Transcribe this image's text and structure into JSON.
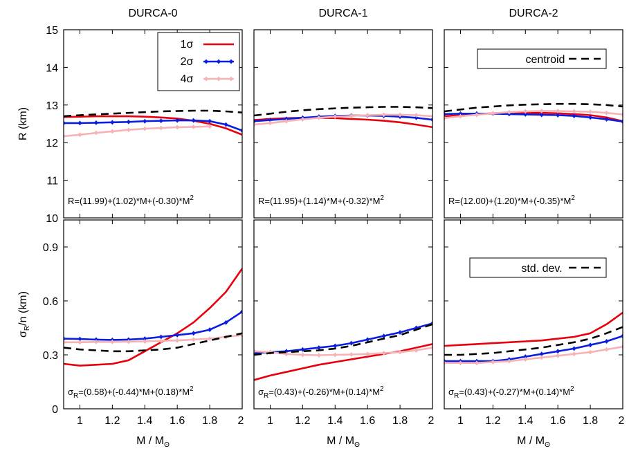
{
  "colors": {
    "sigma1": "#e8000b",
    "sigma2": "#0a1ee0",
    "sigma4": "#f6b2b5",
    "centroid": "#000000"
  },
  "chart_data": [
    {
      "type": "line",
      "model": "DURCA-0",
      "row": "R",
      "title": "DURCA-0",
      "ylabel": "R  (km)",
      "xlabel": "",
      "xlim": [
        0.9,
        2.0
      ],
      "ylim": [
        10,
        15
      ],
      "x_ticks": [],
      "y_ticks": [
        "10",
        "11",
        "12",
        "13",
        "14",
        "15"
      ],
      "fit_text": "R=(11.99)+(1.02)*M+(-0.30)*M",
      "fit_sup": "2",
      "fit_sub": "",
      "legend": {
        "entries": [
          "1σ",
          "2σ",
          "4σ"
        ]
      },
      "series": [
        {
          "name": "1σ",
          "color": "#e8000b",
          "x": [
            0.9,
            1.0,
            1.1,
            1.2,
            1.3,
            1.4,
            1.5,
            1.6,
            1.7,
            1.8,
            1.9,
            2.0
          ],
          "y": [
            12.68,
            12.69,
            12.7,
            12.7,
            12.7,
            12.69,
            12.67,
            12.64,
            12.58,
            12.5,
            12.38,
            12.21
          ]
        },
        {
          "name": "2σ",
          "color": "#0a1ee0",
          "markers": true,
          "x": [
            0.9,
            1.0,
            1.1,
            1.2,
            1.3,
            1.4,
            1.5,
            1.6,
            1.7,
            1.8,
            1.9,
            2.0
          ],
          "y": [
            12.52,
            12.52,
            12.53,
            12.54,
            12.55,
            12.57,
            12.58,
            12.59,
            12.59,
            12.57,
            12.48,
            12.32
          ]
        },
        {
          "name": "4σ",
          "color": "#f6b2b5",
          "markers": true,
          "x": [
            0.9,
            1.0,
            1.1,
            1.2,
            1.3,
            1.4,
            1.5,
            1.6,
            1.7,
            1.8
          ],
          "y": [
            12.17,
            12.21,
            12.26,
            12.3,
            12.34,
            12.37,
            12.39,
            12.41,
            12.42,
            12.43
          ]
        },
        {
          "name": "centroid",
          "color": "#000000",
          "dashed": true,
          "x": [
            0.9,
            1.0,
            1.1,
            1.2,
            1.3,
            1.4,
            1.5,
            1.6,
            1.7,
            1.8,
            1.9,
            2.0
          ],
          "y": [
            12.7,
            12.73,
            12.75,
            12.77,
            12.79,
            12.81,
            12.83,
            12.84,
            12.85,
            12.85,
            12.83,
            12.8
          ]
        }
      ]
    },
    {
      "type": "line",
      "model": "DURCA-1",
      "row": "R",
      "title": "DURCA-1",
      "ylabel": "",
      "xlabel": "",
      "xlim": [
        0.9,
        2.0
      ],
      "ylim": [
        10,
        15
      ],
      "x_ticks": [],
      "y_ticks": [],
      "fit_text": "R=(11.95)+(1.14)*M+(-0.32)*M",
      "fit_sup": "2",
      "fit_sub": "",
      "series": [
        {
          "name": "1σ",
          "color": "#e8000b",
          "x": [
            0.9,
            1.0,
            1.1,
            1.2,
            1.3,
            1.4,
            1.5,
            1.6,
            1.7,
            1.8,
            1.9,
            2.0
          ],
          "y": [
            12.6,
            12.63,
            12.65,
            12.66,
            12.66,
            12.65,
            12.63,
            12.61,
            12.58,
            12.54,
            12.48,
            12.41
          ]
        },
        {
          "name": "2σ",
          "color": "#0a1ee0",
          "markers": true,
          "x": [
            0.9,
            1.0,
            1.1,
            1.2,
            1.3,
            1.4,
            1.5,
            1.6,
            1.7,
            1.8,
            1.9,
            2.0
          ],
          "y": [
            12.57,
            12.6,
            12.63,
            12.66,
            12.69,
            12.71,
            12.72,
            12.72,
            12.71,
            12.69,
            12.66,
            12.61
          ]
        },
        {
          "name": "4σ",
          "color": "#f6b2b5",
          "markers": true,
          "x": [
            0.9,
            1.0,
            1.1,
            1.2,
            1.3,
            1.4,
            1.5,
            1.6,
            1.7,
            1.8,
            1.9,
            2.0
          ],
          "y": [
            12.48,
            12.52,
            12.57,
            12.62,
            12.66,
            12.69,
            12.71,
            12.73,
            12.74,
            12.74,
            12.73,
            12.7
          ]
        },
        {
          "name": "centroid",
          "color": "#000000",
          "dashed": true,
          "x": [
            0.9,
            1.0,
            1.1,
            1.2,
            1.3,
            1.4,
            1.5,
            1.6,
            1.7,
            1.8,
            1.9,
            2.0
          ],
          "y": [
            12.72,
            12.77,
            12.82,
            12.86,
            12.89,
            12.91,
            12.93,
            12.94,
            12.95,
            12.95,
            12.94,
            12.92
          ]
        }
      ]
    },
    {
      "type": "line",
      "model": "DURCA-2",
      "row": "R",
      "title": "DURCA-2",
      "ylabel": "",
      "xlabel": "",
      "xlim": [
        0.9,
        2.0
      ],
      "ylim": [
        10,
        15
      ],
      "x_ticks": [],
      "y_ticks": [],
      "fit_text": "R=(12.00)+(1.20)*M+(-0.35)*M",
      "fit_sup": "2",
      "fit_sub": "",
      "legend": {
        "entries": [
          "centroid"
        ]
      },
      "series": [
        {
          "name": "1σ",
          "color": "#e8000b",
          "x": [
            0.9,
            1.0,
            1.1,
            1.2,
            1.3,
            1.4,
            1.5,
            1.6,
            1.7,
            1.8,
            1.9,
            2.0
          ],
          "y": [
            12.7,
            12.73,
            12.76,
            12.78,
            12.79,
            12.79,
            12.79,
            12.78,
            12.76,
            12.73,
            12.67,
            12.57
          ]
        },
        {
          "name": "2σ",
          "color": "#0a1ee0",
          "markers": true,
          "x": [
            0.9,
            1.0,
            1.1,
            1.2,
            1.3,
            1.4,
            1.5,
            1.6,
            1.7,
            1.8,
            1.9,
            2.0
          ],
          "y": [
            12.76,
            12.77,
            12.77,
            12.77,
            12.76,
            12.75,
            12.74,
            12.73,
            12.71,
            12.67,
            12.62,
            12.56
          ]
        },
        {
          "name": "4σ",
          "color": "#f6b2b5",
          "markers": true,
          "x": [
            0.9,
            1.0,
            1.1,
            1.2,
            1.3,
            1.4,
            1.5,
            1.6,
            1.7,
            1.8,
            1.9,
            2.0
          ],
          "y": [
            12.65,
            12.7,
            12.74,
            12.78,
            12.81,
            12.83,
            12.84,
            12.84,
            12.83,
            12.82,
            12.79,
            12.75
          ]
        },
        {
          "name": "centroid",
          "color": "#000000",
          "dashed": true,
          "x": [
            0.9,
            1.0,
            1.1,
            1.2,
            1.3,
            1.4,
            1.5,
            1.6,
            1.7,
            1.8,
            1.9,
            2.0
          ],
          "y": [
            12.83,
            12.88,
            12.93,
            12.96,
            12.99,
            13.01,
            13.02,
            13.03,
            13.03,
            13.02,
            13.0,
            12.96
          ]
        }
      ]
    },
    {
      "type": "line",
      "model": "DURCA-0",
      "row": "sigma",
      "title": "",
      "ylabel": "σ",
      "ylabel_sub": "R",
      "ylabel_rest": "/n  (km)",
      "xlabel": "M / M",
      "xlabel_sub": "ʘ",
      "xlim": [
        0.9,
        2.0
      ],
      "ylim": [
        0,
        1.05
      ],
      "x_ticks": [
        "1",
        "1.2",
        "1.4",
        "1.6",
        "1.8",
        "2"
      ],
      "y_ticks": [
        "0",
        "0.3",
        "0.6",
        "0.9"
      ],
      "fit_text": "σ",
      "fit_sub": "R",
      "fit_rest": "=(0.58)+(-0.44)*M+(0.18)*M",
      "fit_sup": "2",
      "series": [
        {
          "name": "1σ",
          "color": "#e8000b",
          "x": [
            0.9,
            1.0,
            1.1,
            1.2,
            1.3,
            1.4,
            1.5,
            1.6,
            1.7,
            1.8,
            1.9,
            2.0
          ],
          "y": [
            0.25,
            0.24,
            0.245,
            0.25,
            0.27,
            0.32,
            0.37,
            0.42,
            0.48,
            0.56,
            0.65,
            0.78
          ]
        },
        {
          "name": "2σ",
          "color": "#0a1ee0",
          "markers": true,
          "x": [
            0.9,
            1.0,
            1.1,
            1.2,
            1.3,
            1.4,
            1.5,
            1.6,
            1.7,
            1.8,
            1.9,
            2.0
          ],
          "y": [
            0.39,
            0.388,
            0.385,
            0.383,
            0.385,
            0.39,
            0.4,
            0.41,
            0.42,
            0.44,
            0.48,
            0.54
          ]
        },
        {
          "name": "4σ",
          "color": "#f6b2b5",
          "markers": true,
          "x": [
            0.9,
            1.0,
            1.1,
            1.2,
            1.3,
            1.4,
            1.5,
            1.6,
            1.7,
            1.8,
            1.9,
            2.0
          ],
          "y": [
            0.37,
            0.37,
            0.372,
            0.372,
            0.373,
            0.375,
            0.378,
            0.38,
            0.385,
            0.39,
            0.4,
            0.41
          ]
        },
        {
          "name": "centroid",
          "color": "#000000",
          "dashed": true,
          "x": [
            0.9,
            1.0,
            1.1,
            1.2,
            1.3,
            1.4,
            1.5,
            1.6,
            1.7,
            1.8,
            1.9,
            2.0
          ],
          "y": [
            0.34,
            0.33,
            0.325,
            0.32,
            0.32,
            0.325,
            0.33,
            0.34,
            0.36,
            0.38,
            0.4,
            0.42
          ]
        }
      ]
    },
    {
      "type": "line",
      "model": "DURCA-1",
      "row": "sigma",
      "title": "",
      "ylabel": "",
      "xlabel": "M / M",
      "xlabel_sub": "ʘ",
      "xlim": [
        0.9,
        2.0
      ],
      "ylim": [
        0,
        1.05
      ],
      "x_ticks": [
        "1",
        "1.2",
        "1.4",
        "1.6",
        "1.8",
        "2"
      ],
      "y_ticks": [],
      "fit_text": "σ",
      "fit_sub": "R",
      "fit_rest": "=(0.43)+(-0.26)*M+(0.14)*M",
      "fit_sup": "2",
      "series": [
        {
          "name": "1σ",
          "color": "#e8000b",
          "x": [
            0.9,
            1.0,
            1.1,
            1.2,
            1.3,
            1.4,
            1.5,
            1.6,
            1.7,
            1.8,
            1.9,
            2.0
          ],
          "y": [
            0.16,
            0.185,
            0.205,
            0.225,
            0.245,
            0.26,
            0.275,
            0.29,
            0.305,
            0.32,
            0.34,
            0.36
          ]
        },
        {
          "name": "2σ",
          "color": "#0a1ee0",
          "markers": true,
          "x": [
            0.9,
            1.0,
            1.1,
            1.2,
            1.3,
            1.4,
            1.5,
            1.6,
            1.7,
            1.8,
            1.9,
            2.0
          ],
          "y": [
            0.31,
            0.315,
            0.32,
            0.33,
            0.34,
            0.35,
            0.365,
            0.385,
            0.405,
            0.425,
            0.45,
            0.475
          ]
        },
        {
          "name": "4σ",
          "color": "#f6b2b5",
          "markers": true,
          "x": [
            0.9,
            1.0,
            1.1,
            1.2,
            1.3,
            1.4,
            1.5,
            1.6,
            1.7,
            1.8,
            1.9,
            2.0
          ],
          "y": [
            0.32,
            0.315,
            0.305,
            0.3,
            0.298,
            0.3,
            0.302,
            0.305,
            0.31,
            0.315,
            0.325,
            0.34
          ]
        },
        {
          "name": "centroid",
          "color": "#000000",
          "dashed": true,
          "x": [
            0.9,
            1.0,
            1.1,
            1.2,
            1.3,
            1.4,
            1.5,
            1.6,
            1.7,
            1.8,
            1.9,
            2.0
          ],
          "y": [
            0.3,
            0.31,
            0.315,
            0.32,
            0.325,
            0.335,
            0.35,
            0.37,
            0.39,
            0.41,
            0.44,
            0.47
          ]
        }
      ]
    },
    {
      "type": "line",
      "model": "DURCA-2",
      "row": "sigma",
      "title": "",
      "ylabel": "",
      "xlabel": "M / M",
      "xlabel_sub": "ʘ",
      "xlim": [
        0.9,
        2.0
      ],
      "ylim": [
        0,
        1.05
      ],
      "x_ticks": [
        "1",
        "1.2",
        "1.4",
        "1.6",
        "1.8",
        "2"
      ],
      "y_ticks": [],
      "fit_text": "σ",
      "fit_sub": "R",
      "fit_rest": "=(0.43)+(-0.27)*M+(0.14)*M",
      "fit_sup": "2",
      "legend": {
        "entries": [
          "std. dev."
        ]
      },
      "series": [
        {
          "name": "1σ",
          "color": "#e8000b",
          "x": [
            0.9,
            1.0,
            1.1,
            1.2,
            1.3,
            1.4,
            1.5,
            1.6,
            1.7,
            1.8,
            1.9,
            2.0
          ],
          "y": [
            0.35,
            0.355,
            0.36,
            0.365,
            0.37,
            0.375,
            0.38,
            0.39,
            0.4,
            0.42,
            0.47,
            0.535
          ]
        },
        {
          "name": "2σ",
          "color": "#0a1ee0",
          "markers": true,
          "x": [
            0.9,
            1.0,
            1.1,
            1.2,
            1.3,
            1.4,
            1.5,
            1.6,
            1.7,
            1.8,
            1.9,
            2.0
          ],
          "y": [
            0.265,
            0.265,
            0.265,
            0.265,
            0.275,
            0.29,
            0.305,
            0.32,
            0.335,
            0.355,
            0.375,
            0.405
          ]
        },
        {
          "name": "4σ",
          "color": "#f6b2b5",
          "markers": true,
          "x": [
            0.9,
            1.0,
            1.1,
            1.2,
            1.3,
            1.4,
            1.5,
            1.6,
            1.7,
            1.8,
            1.9,
            2.0
          ],
          "y": [
            0.255,
            0.255,
            0.255,
            0.26,
            0.265,
            0.275,
            0.285,
            0.295,
            0.305,
            0.315,
            0.33,
            0.345
          ]
        },
        {
          "name": "centroid",
          "color": "#000000",
          "dashed": true,
          "x": [
            0.9,
            1.0,
            1.1,
            1.2,
            1.3,
            1.4,
            1.5,
            1.6,
            1.7,
            1.8,
            1.9,
            2.0
          ],
          "y": [
            0.3,
            0.3,
            0.305,
            0.31,
            0.32,
            0.33,
            0.34,
            0.355,
            0.37,
            0.39,
            0.42,
            0.455
          ]
        }
      ]
    }
  ]
}
